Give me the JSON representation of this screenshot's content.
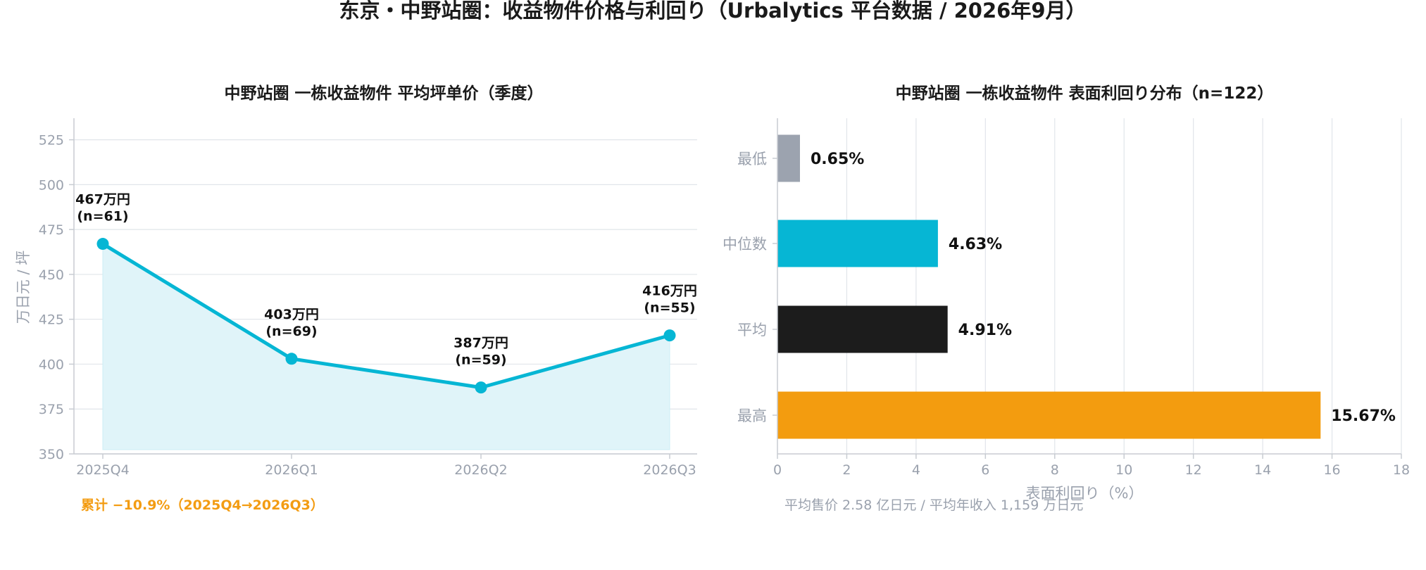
{
  "title": "东京・中野站圈：收益物件价格与利回り（Urbalytics 平台数据 / 2026年9月）",
  "colors": {
    "line": "#06b6d4",
    "area": "#e0f4f9",
    "bar_min": "#9ca3af",
    "bar_median": "#06b6d4",
    "bar_mean": "#1c1c1c",
    "bar_max": "#f39c0f",
    "note": "#f39c12",
    "muted": "#9aa1ad"
  },
  "chart_data": [
    {
      "type": "line",
      "title": "中野站圈 一栋收益物件 平均坪单价（季度）",
      "xlabel": "",
      "ylabel": "万日元 / 坪",
      "categories": [
        "2025Q4",
        "2026Q1",
        "2026Q2",
        "2026Q3"
      ],
      "series": [
        {
          "values": [
            467,
            403,
            387,
            416
          ]
        }
      ],
      "point_labels": [
        [
          "467万円",
          "(n=61)"
        ],
        [
          "403万円",
          "(n=69)"
        ],
        [
          "387万円",
          "(n=59)"
        ],
        [
          "416万円",
          "(n=55)"
        ]
      ],
      "ylim": [
        350,
        537
      ],
      "yticks": [
        350,
        375,
        400,
        425,
        450,
        475,
        500,
        525
      ],
      "grid": true,
      "area_fill": true,
      "annotation": "累计 −10.9%（2025Q4→2026Q3）"
    },
    {
      "type": "bar",
      "orientation": "horizontal",
      "title": "中野站圈 一栋收益物件 表面利回り分布（n=122）",
      "xlabel": "表面利回り（%）",
      "ylabel": "",
      "categories": [
        "最低",
        "中位数",
        "平均",
        "最高"
      ],
      "values": [
        0.65,
        4.63,
        4.91,
        15.67
      ],
      "value_labels": [
        "0.65%",
        "4.63%",
        "4.91%",
        "15.67%"
      ],
      "xlim": [
        0,
        18
      ],
      "xticks": [
        0,
        2,
        4,
        6,
        8,
        10,
        12,
        14,
        16,
        18
      ],
      "grid": true,
      "annotation": "平均售价 2.58 亿日元 / 平均年收入 1,159 万日元"
    }
  ]
}
